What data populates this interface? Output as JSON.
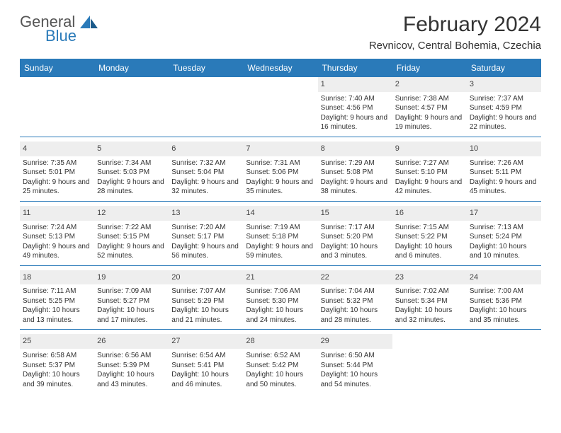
{
  "logo": {
    "word1": "General",
    "word2": "Blue"
  },
  "title": "February 2024",
  "subtitle": "Revnicov, Central Bohemia, Czechia",
  "colors": {
    "header_bg": "#2a7ab9",
    "header_fg": "#ffffff",
    "daynum_bg": "#eeeeee",
    "divider": "#2a7ab9",
    "text": "#333333"
  },
  "weekdays": [
    "Sunday",
    "Monday",
    "Tuesday",
    "Wednesday",
    "Thursday",
    "Friday",
    "Saturday"
  ],
  "weeks": [
    [
      null,
      null,
      null,
      null,
      {
        "n": "1",
        "sunrise": "7:40 AM",
        "sunset": "4:56 PM",
        "daylight": "9 hours and 16 minutes."
      },
      {
        "n": "2",
        "sunrise": "7:38 AM",
        "sunset": "4:57 PM",
        "daylight": "9 hours and 19 minutes."
      },
      {
        "n": "3",
        "sunrise": "7:37 AM",
        "sunset": "4:59 PM",
        "daylight": "9 hours and 22 minutes."
      }
    ],
    [
      {
        "n": "4",
        "sunrise": "7:35 AM",
        "sunset": "5:01 PM",
        "daylight": "9 hours and 25 minutes."
      },
      {
        "n": "5",
        "sunrise": "7:34 AM",
        "sunset": "5:03 PM",
        "daylight": "9 hours and 28 minutes."
      },
      {
        "n": "6",
        "sunrise": "7:32 AM",
        "sunset": "5:04 PM",
        "daylight": "9 hours and 32 minutes."
      },
      {
        "n": "7",
        "sunrise": "7:31 AM",
        "sunset": "5:06 PM",
        "daylight": "9 hours and 35 minutes."
      },
      {
        "n": "8",
        "sunrise": "7:29 AM",
        "sunset": "5:08 PM",
        "daylight": "9 hours and 38 minutes."
      },
      {
        "n": "9",
        "sunrise": "7:27 AM",
        "sunset": "5:10 PM",
        "daylight": "9 hours and 42 minutes."
      },
      {
        "n": "10",
        "sunrise": "7:26 AM",
        "sunset": "5:11 PM",
        "daylight": "9 hours and 45 minutes."
      }
    ],
    [
      {
        "n": "11",
        "sunrise": "7:24 AM",
        "sunset": "5:13 PM",
        "daylight": "9 hours and 49 minutes."
      },
      {
        "n": "12",
        "sunrise": "7:22 AM",
        "sunset": "5:15 PM",
        "daylight": "9 hours and 52 minutes."
      },
      {
        "n": "13",
        "sunrise": "7:20 AM",
        "sunset": "5:17 PM",
        "daylight": "9 hours and 56 minutes."
      },
      {
        "n": "14",
        "sunrise": "7:19 AM",
        "sunset": "5:18 PM",
        "daylight": "9 hours and 59 minutes."
      },
      {
        "n": "15",
        "sunrise": "7:17 AM",
        "sunset": "5:20 PM",
        "daylight": "10 hours and 3 minutes."
      },
      {
        "n": "16",
        "sunrise": "7:15 AM",
        "sunset": "5:22 PM",
        "daylight": "10 hours and 6 minutes."
      },
      {
        "n": "17",
        "sunrise": "7:13 AM",
        "sunset": "5:24 PM",
        "daylight": "10 hours and 10 minutes."
      }
    ],
    [
      {
        "n": "18",
        "sunrise": "7:11 AM",
        "sunset": "5:25 PM",
        "daylight": "10 hours and 13 minutes."
      },
      {
        "n": "19",
        "sunrise": "7:09 AM",
        "sunset": "5:27 PM",
        "daylight": "10 hours and 17 minutes."
      },
      {
        "n": "20",
        "sunrise": "7:07 AM",
        "sunset": "5:29 PM",
        "daylight": "10 hours and 21 minutes."
      },
      {
        "n": "21",
        "sunrise": "7:06 AM",
        "sunset": "5:30 PM",
        "daylight": "10 hours and 24 minutes."
      },
      {
        "n": "22",
        "sunrise": "7:04 AM",
        "sunset": "5:32 PM",
        "daylight": "10 hours and 28 minutes."
      },
      {
        "n": "23",
        "sunrise": "7:02 AM",
        "sunset": "5:34 PM",
        "daylight": "10 hours and 32 minutes."
      },
      {
        "n": "24",
        "sunrise": "7:00 AM",
        "sunset": "5:36 PM",
        "daylight": "10 hours and 35 minutes."
      }
    ],
    [
      {
        "n": "25",
        "sunrise": "6:58 AM",
        "sunset": "5:37 PM",
        "daylight": "10 hours and 39 minutes."
      },
      {
        "n": "26",
        "sunrise": "6:56 AM",
        "sunset": "5:39 PM",
        "daylight": "10 hours and 43 minutes."
      },
      {
        "n": "27",
        "sunrise": "6:54 AM",
        "sunset": "5:41 PM",
        "daylight": "10 hours and 46 minutes."
      },
      {
        "n": "28",
        "sunrise": "6:52 AM",
        "sunset": "5:42 PM",
        "daylight": "10 hours and 50 minutes."
      },
      {
        "n": "29",
        "sunrise": "6:50 AM",
        "sunset": "5:44 PM",
        "daylight": "10 hours and 54 minutes."
      },
      null,
      null
    ]
  ],
  "labels": {
    "sunrise": "Sunrise:",
    "sunset": "Sunset:",
    "daylight": "Daylight:"
  }
}
